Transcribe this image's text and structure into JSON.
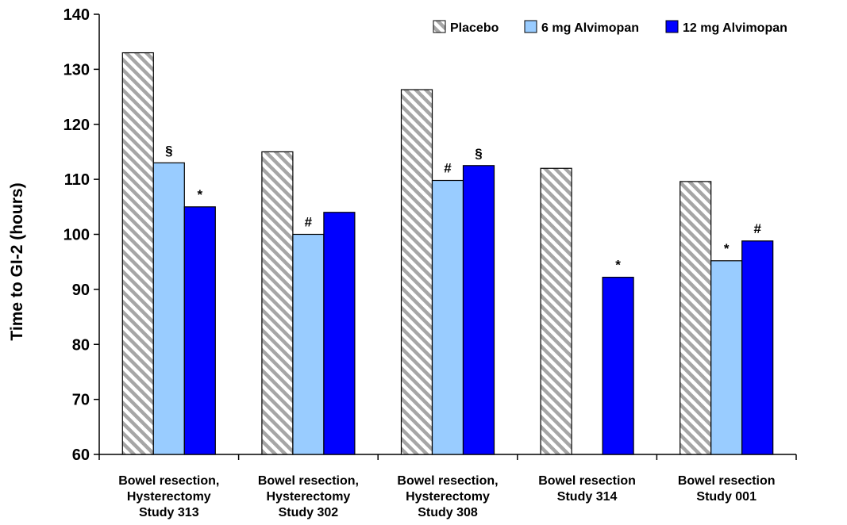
{
  "chart_data": {
    "type": "bar",
    "title": "",
    "ylabel": "Time to GI-2 (hours)",
    "ylim": [
      60,
      140
    ],
    "yticks": [
      60,
      70,
      80,
      90,
      100,
      110,
      120,
      130,
      140
    ],
    "grid": false,
    "legend_position": "top-right",
    "categories": [
      {
        "lines": [
          "Bowel resection,",
          "Hysterectomy",
          "Study 313"
        ]
      },
      {
        "lines": [
          "Bowel resection,",
          "Hysterectomy",
          "Study 302"
        ]
      },
      {
        "lines": [
          "Bowel resection,",
          "Hysterectomy",
          "Study 308"
        ]
      },
      {
        "lines": [
          "Bowel resection",
          "Study 314"
        ]
      },
      {
        "lines": [
          "Bowel resection",
          "Study 001"
        ]
      }
    ],
    "series": [
      {
        "name": "Placebo",
        "pattern": "hatched",
        "color": "#a6a6a6",
        "values": [
          133,
          115,
          126.3,
          112,
          109.6
        ],
        "annotations": [
          "",
          "",
          "",
          "",
          ""
        ]
      },
      {
        "name": "6 mg Alvimopan",
        "color": "#99ccff",
        "values": [
          113,
          100,
          109.8,
          null,
          95.2
        ],
        "annotations": [
          "§",
          "#",
          "#",
          "",
          "*"
        ]
      },
      {
        "name": "12 mg Alvimopan",
        "color": "#0000ff",
        "values": [
          105,
          104,
          112.5,
          92.2,
          98.8
        ],
        "annotations": [
          "*",
          "",
          "§",
          "*",
          "#"
        ]
      }
    ]
  }
}
